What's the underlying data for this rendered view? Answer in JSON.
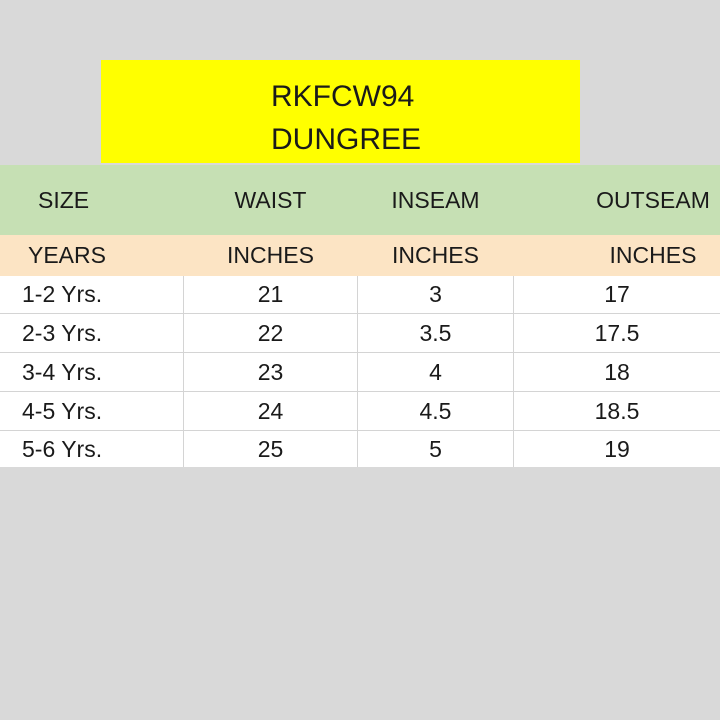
{
  "title": {
    "code": "RKFCW94",
    "name": "DUNGREE"
  },
  "table": {
    "headers": [
      "SIZE",
      "WAIST",
      "INSEAM",
      "OUTSEAM"
    ],
    "units": [
      "YEARS",
      "INCHES",
      "INCHES",
      "INCHES"
    ],
    "rows": [
      [
        "1-2 Yrs.",
        "21",
        "3",
        "17"
      ],
      [
        "2-3 Yrs.",
        "22",
        "3.5",
        "17.5"
      ],
      [
        "3-4 Yrs.",
        "23",
        "4",
        "18"
      ],
      [
        "4-5 Yrs.",
        "24",
        "4.5",
        "18.5"
      ],
      [
        "5-6 Yrs.",
        "25",
        "5",
        "19"
      ]
    ]
  },
  "colors": {
    "background": "#d9d9d9",
    "title_fill": "#ffff00",
    "header_fill": "#c6e0b4",
    "units_fill": "#fce4c4"
  }
}
